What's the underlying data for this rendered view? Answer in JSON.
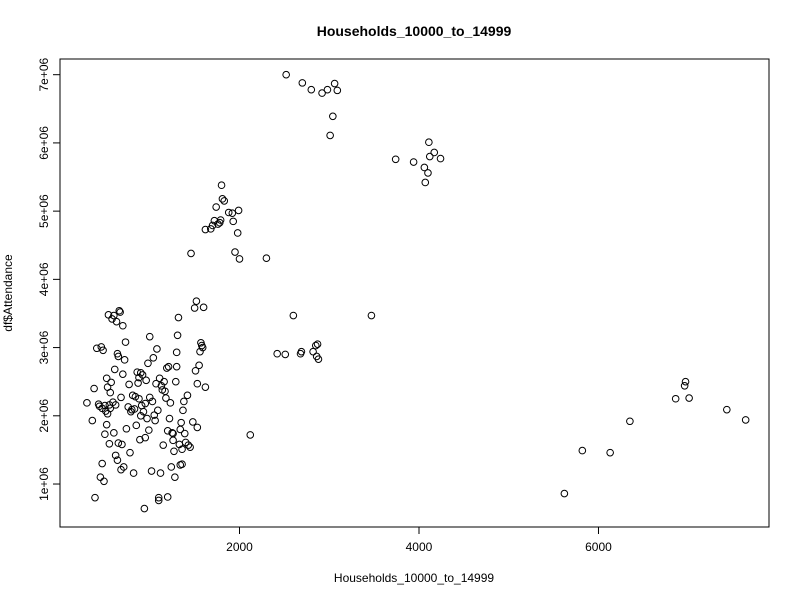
{
  "chart_data": {
    "type": "scatter",
    "title": "Households_10000_to_14999",
    "xlabel": "Households_10000_to_14999",
    "ylabel": "df$Attendance",
    "xlim": [
      0,
      7900
    ],
    "ylim": [
      370000,
      7230000
    ],
    "x_ticks": [
      {
        "value": 2000,
        "label": "2000"
      },
      {
        "value": 4000,
        "label": "4000"
      },
      {
        "value": 6000,
        "label": "6000"
      }
    ],
    "y_ticks": [
      {
        "value": 1000000,
        "label": "1e+06"
      },
      {
        "value": 2000000,
        "label": "2e+06"
      },
      {
        "value": 3000000,
        "label": "3e+06"
      },
      {
        "value": 4000000,
        "label": "4e+06"
      },
      {
        "value": 5000000,
        "label": "5e+06"
      },
      {
        "value": 6000000,
        "label": "6e+06"
      },
      {
        "value": 7000000,
        "label": "7e+06"
      }
    ],
    "grid": false,
    "legend": "none",
    "points": [
      [
        300,
        2190000
      ],
      [
        360,
        1930000
      ],
      [
        380,
        2400000
      ],
      [
        390,
        800000
      ],
      [
        410,
        2990000
      ],
      [
        430,
        2170000
      ],
      [
        440,
        2140000
      ],
      [
        450,
        1100000
      ],
      [
        460,
        3010000
      ],
      [
        470,
        1300000
      ],
      [
        470,
        2110000
      ],
      [
        480,
        2960000
      ],
      [
        490,
        1040000
      ],
      [
        500,
        1730000
      ],
      [
        500,
        2150000
      ],
      [
        510,
        2070000
      ],
      [
        520,
        2550000
      ],
      [
        520,
        1870000
      ],
      [
        530,
        2420000
      ],
      [
        530,
        2030000
      ],
      [
        540,
        3480000
      ],
      [
        550,
        2160000
      ],
      [
        550,
        1590000
      ],
      [
        560,
        2110000
      ],
      [
        560,
        2340000
      ],
      [
        570,
        2490000
      ],
      [
        580,
        3420000
      ],
      [
        590,
        2200000
      ],
      [
        600,
        1750000
      ],
      [
        600,
        3470000
      ],
      [
        610,
        2680000
      ],
      [
        620,
        2160000
      ],
      [
        620,
        1420000
      ],
      [
        630,
        3380000
      ],
      [
        640,
        2910000
      ],
      [
        640,
        1350000
      ],
      [
        650,
        1600000
      ],
      [
        650,
        2870000
      ],
      [
        660,
        3540000
      ],
      [
        670,
        3520000
      ],
      [
        680,
        2270000
      ],
      [
        680,
        1210000
      ],
      [
        690,
        1580000
      ],
      [
        700,
        2610000
      ],
      [
        700,
        3320000
      ],
      [
        710,
        1250000
      ],
      [
        720,
        2820000
      ],
      [
        730,
        3080000
      ],
      [
        740,
        1810000
      ],
      [
        760,
        2130000
      ],
      [
        770,
        2460000
      ],
      [
        780,
        1460000
      ],
      [
        790,
        2060000
      ],
      [
        800,
        2090000
      ],
      [
        810,
        2300000
      ],
      [
        820,
        1160000
      ],
      [
        830,
        2100000
      ],
      [
        840,
        2280000
      ],
      [
        850,
        1860000
      ],
      [
        860,
        2640000
      ],
      [
        870,
        2480000
      ],
      [
        880,
        2560000
      ],
      [
        880,
        2250000
      ],
      [
        890,
        1650000
      ],
      [
        900,
        2000000
      ],
      [
        900,
        2630000
      ],
      [
        910,
        2150000
      ],
      [
        920,
        2600000
      ],
      [
        930,
        2060000
      ],
      [
        940,
        640000
      ],
      [
        950,
        2180000
      ],
      [
        950,
        1680000
      ],
      [
        960,
        2520000
      ],
      [
        970,
        1960000
      ],
      [
        980,
        2770000
      ],
      [
        990,
        1790000
      ],
      [
        1000,
        3160000
      ],
      [
        1000,
        2270000
      ],
      [
        1020,
        1190000
      ],
      [
        1030,
        2210000
      ],
      [
        1040,
        2850000
      ],
      [
        1050,
        2010000
      ],
      [
        1060,
        1930000
      ],
      [
        1070,
        2470000
      ],
      [
        1080,
        2980000
      ],
      [
        1090,
        2080000
      ],
      [
        1100,
        800000
      ],
      [
        1100,
        760000
      ],
      [
        1110,
        2550000
      ],
      [
        1120,
        1160000
      ],
      [
        1130,
        2440000
      ],
      [
        1140,
        2380000
      ],
      [
        1150,
        1570000
      ],
      [
        1160,
        2500000
      ],
      [
        1170,
        2360000
      ],
      [
        1180,
        2260000
      ],
      [
        1190,
        2700000
      ],
      [
        1200,
        1780000
      ],
      [
        1200,
        810000
      ],
      [
        1210,
        2720000
      ],
      [
        1220,
        1960000
      ],
      [
        1230,
        2190000
      ],
      [
        1240,
        1250000
      ],
      [
        1250,
        1750000
      ],
      [
        1260,
        1740000
      ],
      [
        1260,
        1640000
      ],
      [
        1270,
        1480000
      ],
      [
        1280,
        1100000
      ],
      [
        1290,
        2500000
      ],
      [
        1300,
        2720000
      ],
      [
        1300,
        2930000
      ],
      [
        1310,
        3180000
      ],
      [
        1320,
        3440000
      ],
      [
        1330,
        1580000
      ],
      [
        1340,
        1800000
      ],
      [
        1340,
        1280000
      ],
      [
        1350,
        1900000
      ],
      [
        1360,
        1510000
      ],
      [
        1360,
        1290000
      ],
      [
        1370,
        2080000
      ],
      [
        1380,
        2210000
      ],
      [
        1390,
        1740000
      ],
      [
        1400,
        1610000
      ],
      [
        1420,
        2300000
      ],
      [
        1430,
        1570000
      ],
      [
        1450,
        1540000
      ],
      [
        1460,
        4380000
      ],
      [
        1480,
        1910000
      ],
      [
        1500,
        3580000
      ],
      [
        1510,
        2660000
      ],
      [
        1520,
        3680000
      ],
      [
        1530,
        2470000
      ],
      [
        1530,
        1830000
      ],
      [
        1550,
        2740000
      ],
      [
        1560,
        2940000
      ],
      [
        1570,
        3070000
      ],
      [
        1580,
        3030000
      ],
      [
        1590,
        3000000
      ],
      [
        1600,
        3590000
      ],
      [
        1620,
        2420000
      ],
      [
        1620,
        4730000
      ],
      [
        1680,
        4740000
      ],
      [
        1700,
        4790000
      ],
      [
        1720,
        4860000
      ],
      [
        1740,
        5060000
      ],
      [
        1760,
        4810000
      ],
      [
        1780,
        4830000
      ],
      [
        1790,
        4870000
      ],
      [
        1800,
        5380000
      ],
      [
        1810,
        5180000
      ],
      [
        1830,
        5150000
      ],
      [
        1880,
        4980000
      ],
      [
        1920,
        4970000
      ],
      [
        1930,
        4850000
      ],
      [
        1950,
        4400000
      ],
      [
        1980,
        4680000
      ],
      [
        1990,
        5010000
      ],
      [
        2000,
        4300000
      ],
      [
        2120,
        1720000
      ],
      [
        2300,
        4310000
      ],
      [
        2420,
        2910000
      ],
      [
        2510,
        2900000
      ],
      [
        2520,
        7000000
      ],
      [
        2600,
        3470000
      ],
      [
        2680,
        2910000
      ],
      [
        2690,
        2940000
      ],
      [
        2700,
        6880000
      ],
      [
        2800,
        6780000
      ],
      [
        2820,
        2940000
      ],
      [
        2850,
        3030000
      ],
      [
        2860,
        2870000
      ],
      [
        2870,
        3050000
      ],
      [
        2880,
        2830000
      ],
      [
        2920,
        6730000
      ],
      [
        2980,
        6780000
      ],
      [
        3010,
        6110000
      ],
      [
        3040,
        6390000
      ],
      [
        3060,
        6870000
      ],
      [
        3090,
        6770000
      ],
      [
        3470,
        3470000
      ],
      [
        3740,
        5760000
      ],
      [
        3940,
        5720000
      ],
      [
        4060,
        5640000
      ],
      [
        4070,
        5420000
      ],
      [
        4100,
        5560000
      ],
      [
        4110,
        6010000
      ],
      [
        4120,
        5800000
      ],
      [
        4170,
        5860000
      ],
      [
        4240,
        5770000
      ],
      [
        5620,
        860000
      ],
      [
        5820,
        1490000
      ],
      [
        6130,
        1460000
      ],
      [
        6350,
        1920000
      ],
      [
        6860,
        2250000
      ],
      [
        6960,
        2440000
      ],
      [
        6970,
        2500000
      ],
      [
        7010,
        2260000
      ],
      [
        7430,
        2090000
      ],
      [
        7640,
        1940000
      ]
    ]
  }
}
